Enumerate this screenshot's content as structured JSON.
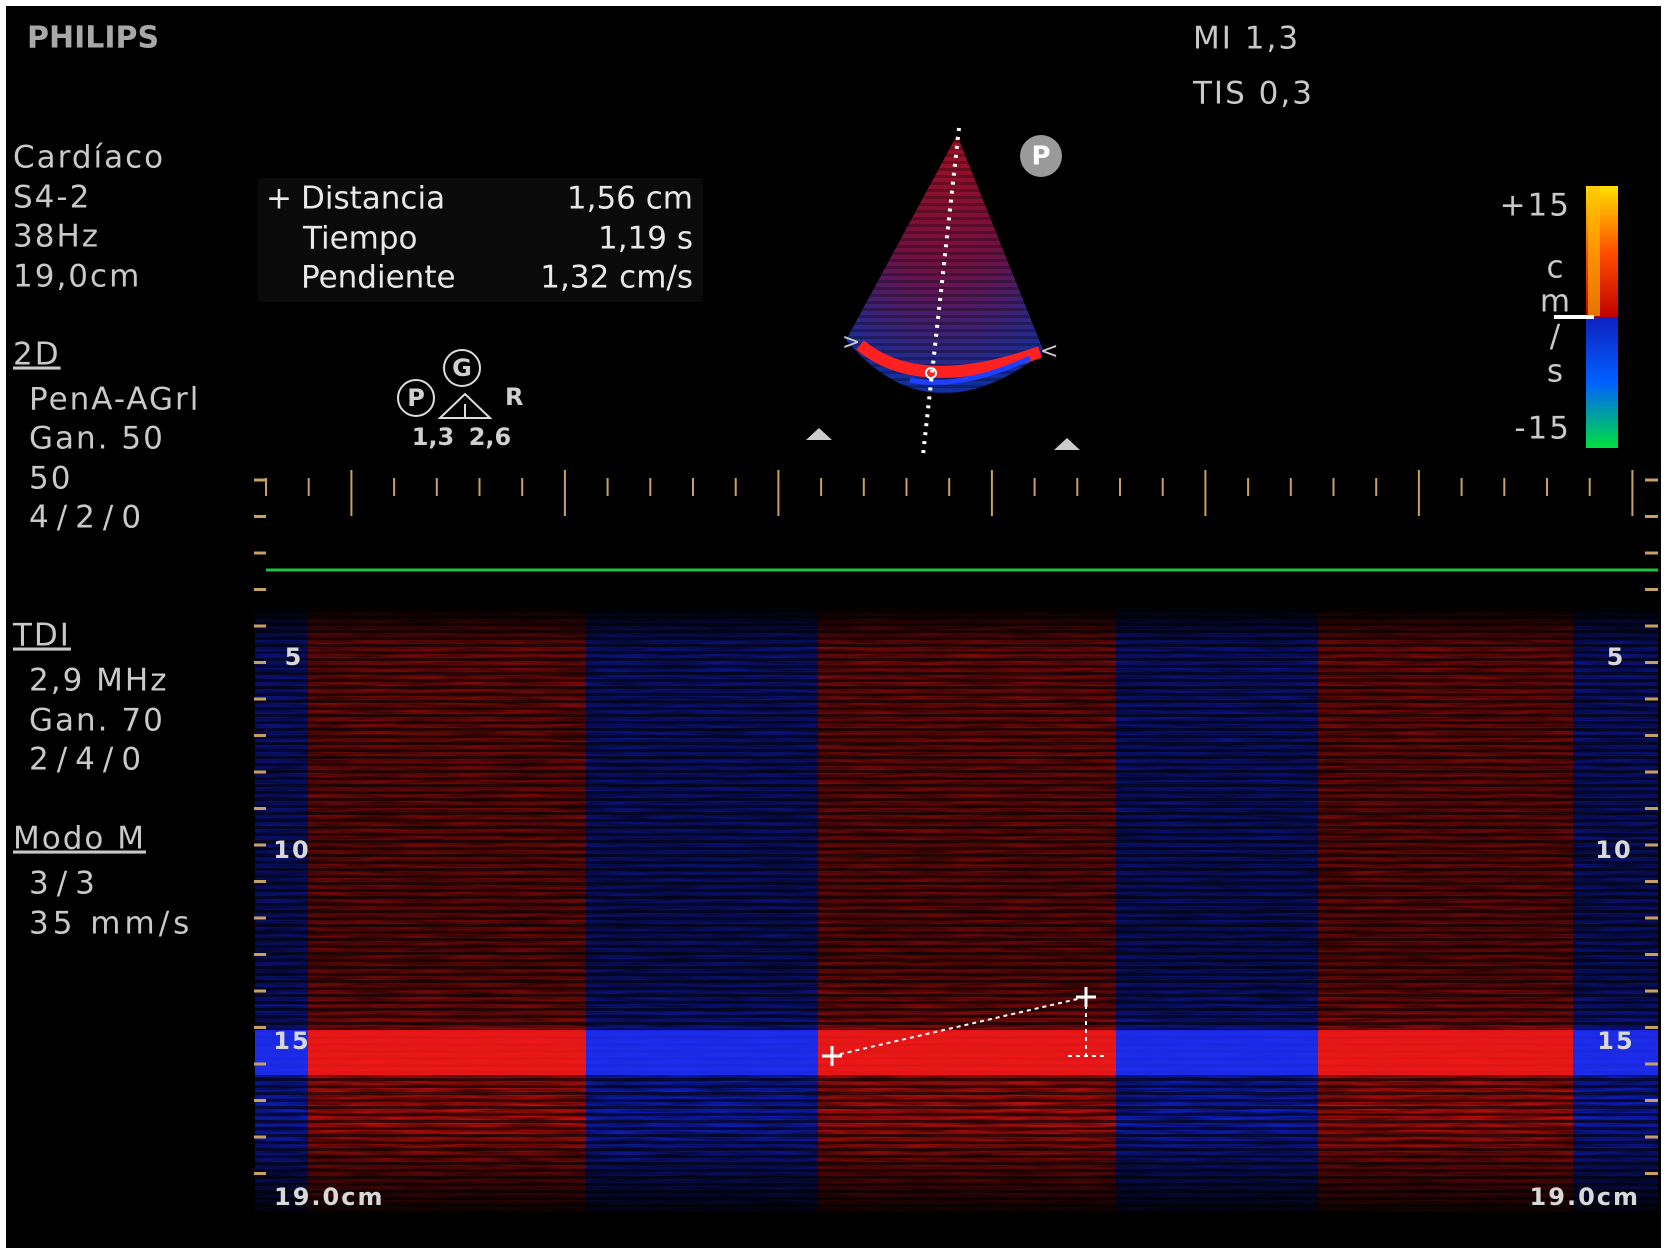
{
  "header": {
    "brand": "PHILIPS",
    "mi": "MI 1,3",
    "tis": "TIS 0,3"
  },
  "preset": [
    "Cardíaco",
    "S4-2",
    "38Hz",
    "19,0cm"
  ],
  "measurements": [
    {
      "label": "Distancia",
      "value": "1,56 cm"
    },
    {
      "label": "Tiempo",
      "value": "1,19 s"
    },
    {
      "label": "Pendiente",
      "value": "1,32 cm/s"
    }
  ],
  "sections": [
    {
      "title": "2D",
      "lines": [
        "PenA-AGrl",
        "Gan. 50",
        "50",
        "4/2/0"
      ]
    },
    {
      "title": "TDI",
      "lines": [
        "2,9 MHz",
        "Gan. 70",
        "2/4/0"
      ]
    },
    {
      "title": "Modo M",
      "lines": [
        "3/3",
        "35 mm/s"
      ]
    }
  ],
  "probe_icon": {
    "left_circle": "P",
    "top_circle": "G",
    "side": "R",
    "left_value": "1,3",
    "right_value": "2,6"
  },
  "sector_marker": "P",
  "color_bar": {
    "top": "+15",
    "unit_letters": [
      "c",
      "m",
      "/",
      "s"
    ],
    "bottom": "-15"
  },
  "depth_left": [
    "5",
    "10",
    "15",
    "19.0cm"
  ],
  "depth_right": [
    "5",
    "10",
    "15",
    "19.0cm"
  ]
}
